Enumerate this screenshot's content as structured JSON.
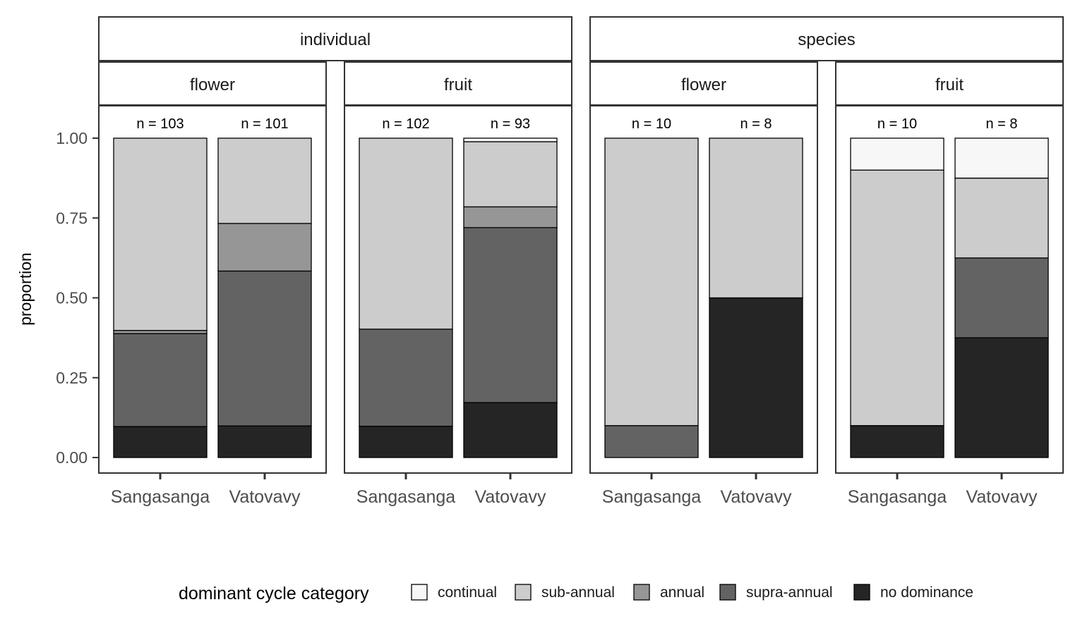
{
  "chart_data": {
    "type": "bar",
    "stacked": true,
    "ylabel": "proportion",
    "ylim": [
      0,
      1
    ],
    "yticks": [
      "0.00",
      "0.25",
      "0.50",
      "0.75",
      "1.00"
    ],
    "ytick_values": [
      0,
      0.25,
      0.5,
      0.75,
      1.0
    ],
    "categories": [
      "Sangasanga",
      "Vatovavy"
    ],
    "legend": {
      "title": "dominant cycle category",
      "position": "bottom",
      "items": [
        {
          "label": "continual",
          "color": "#F7F7F7"
        },
        {
          "label": "sub-annual",
          "color": "#CCCCCC"
        },
        {
          "label": "annual",
          "color": "#969696"
        },
        {
          "label": "supra-annual",
          "color": "#636363"
        },
        {
          "label": "no dominance",
          "color": "#252525"
        }
      ]
    },
    "grid": false,
    "facet_groups": [
      {
        "label": "individual",
        "panels": [
          {
            "label": "flower",
            "bars": [
              {
                "category": "Sangasanga",
                "n_label": "n = 103",
                "values": {
                  "continual": 0,
                  "sub-annual": 0.602,
                  "annual": 0.01,
                  "supra-annual": 0.291,
                  "no dominance": 0.097
                }
              },
              {
                "category": "Vatovavy",
                "n_label": "n = 101",
                "values": {
                  "continual": 0,
                  "sub-annual": 0.267,
                  "annual": 0.149,
                  "supra-annual": 0.485,
                  "no dominance": 0.099
                }
              }
            ]
          },
          {
            "label": "fruit",
            "bars": [
              {
                "category": "Sangasanga",
                "n_label": "n = 102",
                "values": {
                  "continual": 0,
                  "sub-annual": 0.598,
                  "annual": 0,
                  "supra-annual": 0.304,
                  "no dominance": 0.098
                }
              },
              {
                "category": "Vatovavy",
                "n_label": "n = 93",
                "values": {
                  "continual": 0.011,
                  "sub-annual": 0.204,
                  "annual": 0.065,
                  "supra-annual": 0.548,
                  "no dominance": 0.172
                }
              }
            ]
          }
        ]
      },
      {
        "label": "species",
        "panels": [
          {
            "label": "flower",
            "bars": [
              {
                "category": "Sangasanga",
                "n_label": "n = 10",
                "values": {
                  "continual": 0,
                  "sub-annual": 0.9,
                  "annual": 0,
                  "supra-annual": 0.1,
                  "no dominance": 0
                }
              },
              {
                "category": "Vatovavy",
                "n_label": "n = 8",
                "values": {
                  "continual": 0,
                  "sub-annual": 0.5,
                  "annual": 0,
                  "supra-annual": 0,
                  "no dominance": 0.5
                }
              }
            ]
          },
          {
            "label": "fruit",
            "bars": [
              {
                "category": "Sangasanga",
                "n_label": "n = 10",
                "values": {
                  "continual": 0.1,
                  "sub-annual": 0.8,
                  "annual": 0,
                  "supra-annual": 0,
                  "no dominance": 0.1
                }
              },
              {
                "category": "Vatovavy",
                "n_label": "n = 8",
                "values": {
                  "continual": 0.125,
                  "sub-annual": 0.25,
                  "annual": 0,
                  "supra-annual": 0.25,
                  "no dominance": 0.375
                }
              }
            ]
          }
        ]
      }
    ]
  }
}
